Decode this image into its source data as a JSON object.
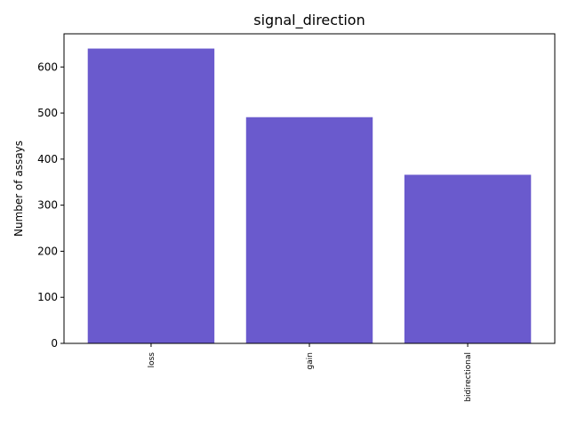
{
  "chart_data": {
    "type": "bar",
    "title": "signal_direction",
    "xlabel": "",
    "ylabel": "Number of assays",
    "categories": [
      "loss",
      "gain",
      "bidirectional"
    ],
    "values": [
      640,
      491,
      366
    ],
    "ylim": [
      0,
      672
    ],
    "yticks": [
      0,
      100,
      200,
      300,
      400,
      500,
      600
    ],
    "grid": false,
    "bar_color": "#6a5acd"
  }
}
